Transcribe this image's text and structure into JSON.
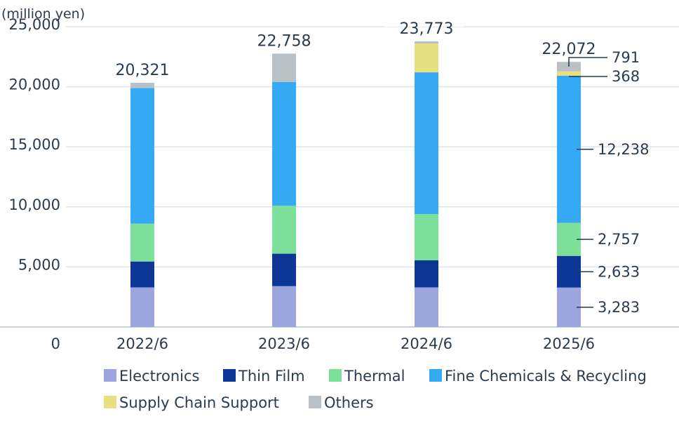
{
  "chart_data": {
    "type": "bar",
    "stacked": true,
    "unit_label": "(million yen)",
    "categories": [
      "2022/6",
      "2023/6",
      "2024/6",
      "2025/6"
    ],
    "ylim": [
      0,
      25000
    ],
    "yticks": [
      0,
      5000,
      10000,
      15000,
      20000,
      25000
    ],
    "ytick_labels": [
      "0",
      "5,000",
      "10,000",
      "15,000",
      "20,000",
      "25,000"
    ],
    "grid": true,
    "legend_position": "bottom",
    "series": [
      {
        "name": "Electronics",
        "color": "#9da6df",
        "values": [
          3300,
          3400,
          3300,
          3283
        ]
      },
      {
        "name": "Thin Film",
        "color": "#0d3797",
        "values": [
          2150,
          2700,
          2250,
          2633
        ]
      },
      {
        "name": "Thermal",
        "color": "#7ce09a",
        "values": [
          3150,
          4000,
          3850,
          2757
        ]
      },
      {
        "name": "Fine Chemicals & Recycling",
        "color": "#36a9f4",
        "values": [
          11300,
          10300,
          11800,
          12238
        ]
      },
      {
        "name": "Supply Chain Support",
        "color": "#e8df80",
        "values": [
          0,
          0,
          2400,
          368
        ]
      },
      {
        "name": "Others",
        "color": "#b9c0c6",
        "values": [
          421,
          2358,
          173,
          791
        ]
      }
    ],
    "totals": [
      "20,321",
      "22,758",
      "23,773",
      "22,072"
    ],
    "annotations_2025": {
      "Others": "791",
      "Supply Chain Support": "368",
      "Fine Chemicals & Recycling": "12,238",
      "Thermal": "2,757",
      "Thin Film": "2,633",
      "Electronics": "3,283"
    }
  }
}
